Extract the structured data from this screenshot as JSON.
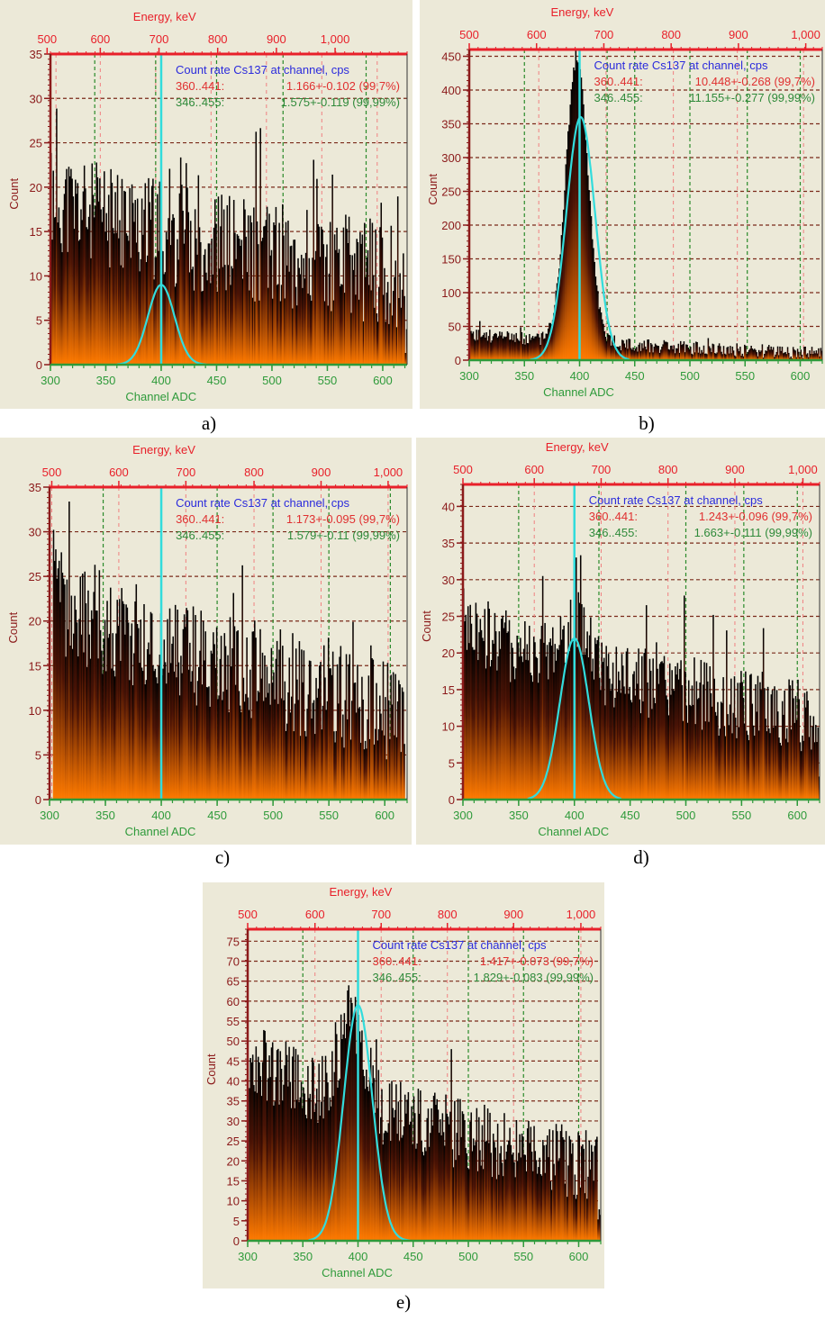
{
  "colors": {
    "panel_bg": "#ece9d8",
    "plot_bg": "#ece9d8",
    "energy_axis": "#e8202a",
    "count_axis": "#8b1a1a",
    "channel_axis": "#2e9a3a",
    "grid_count": "#7a2a1a",
    "grid_energy": "#f08080",
    "grid_channel": "#2a8a2a",
    "marker_line": "#32dcdc",
    "fit_curve": "#32dcdc",
    "bar_top": "#000000",
    "bar_bottom": "#ff7a00",
    "legend_title": "#2b2bdc",
    "legend_row1": "#e03030",
    "legend_row2": "#2f8a3a"
  },
  "chart_data": [
    {
      "id": "a",
      "caption": "a)",
      "type": "bar",
      "title": "",
      "xlabel": "Channel ADC",
      "ylabel": "Count",
      "x2label": "Energy, keV",
      "xlim": [
        300,
        622
      ],
      "ylim": [
        0,
        35
      ],
      "x_ticks": [
        300,
        350,
        400,
        450,
        500,
        550,
        600
      ],
      "y_ticks": [
        0,
        5,
        10,
        15,
        20,
        25,
        30,
        35
      ],
      "x2_ticks": [
        "500",
        "600",
        "700",
        "800",
        "900",
        "1,000"
      ],
      "x2_tick_channels": [
        297,
        345,
        398,
        451,
        504,
        557
      ],
      "energy_grid_channels": [
        305,
        345,
        395,
        445,
        495,
        545,
        595
      ],
      "channel_grid_channels": [
        340,
        395,
        450,
        510,
        585
      ],
      "marker_channel": 400,
      "legend": {
        "title": "Count rate Cs137 at channel, cps",
        "rows": [
          {
            "range": "360..441:",
            "value": "1.166+-0.102 (99,7%)"
          },
          {
            "range": "346..455:",
            "value": "1.575+-0.119 (99,99%)"
          }
        ]
      },
      "spectrum": {
        "start": 300,
        "end": 622,
        "base_start": 19,
        "base_end": 10,
        "noise": 6,
        "spike": 12,
        "peak_amp": 0,
        "peak_center": 400,
        "peak_sigma": 10,
        "seed": 11,
        "tail_drop": 3
      },
      "fit": {
        "amp": 9,
        "center": 400,
        "sigma": 12,
        "from": 360,
        "to": 441
      }
    },
    {
      "id": "b",
      "caption": "b)",
      "type": "bar",
      "title": "",
      "xlabel": "Channel ADC",
      "ylabel": "Count",
      "x2label": "Energy, keV",
      "xlim": [
        300,
        620
      ],
      "ylim": [
        0,
        460
      ],
      "x_ticks": [
        300,
        350,
        400,
        450,
        500,
        550,
        600
      ],
      "y_ticks": [
        0,
        50,
        100,
        150,
        200,
        250,
        300,
        350,
        400,
        450
      ],
      "x2_ticks": [
        "500",
        "600",
        "700",
        "800",
        "900",
        "1,000"
      ],
      "x2_tick_channels": [
        300,
        361,
        422,
        483,
        544,
        605
      ],
      "energy_grid_channels": [
        363,
        424,
        485,
        543,
        603
      ],
      "channel_grid_channels": [
        350,
        425,
        450,
        500,
        552,
        600
      ],
      "marker_channel": 400,
      "legend": {
        "title": "Count rate Cs137 at channel, cps",
        "rows": [
          {
            "range": "360..441:",
            "value": "10.448+-0.268 (99,7%)"
          },
          {
            "range": "346..455:",
            "value": "11.155+-0.277 (99,99%)"
          }
        ]
      },
      "spectrum": {
        "start": 300,
        "end": 620,
        "base_start": 40,
        "base_end": 10,
        "noise": 10,
        "spike": 15,
        "peak_amp": 420,
        "peak_center": 397,
        "peak_sigma": 10,
        "seed": 23,
        "tail_drop": 0
      },
      "fit": {
        "amp": 360,
        "center": 401,
        "sigma": 13,
        "from": 355,
        "to": 445
      }
    },
    {
      "id": "c",
      "caption": "c)",
      "type": "bar",
      "title": "",
      "xlabel": "Channel ADC",
      "ylabel": "Count",
      "x2label": "Energy, keV",
      "xlim": [
        300,
        620
      ],
      "ylim": [
        0,
        35
      ],
      "x_ticks": [
        300,
        350,
        400,
        450,
        500,
        550,
        600
      ],
      "y_ticks": [
        0,
        5,
        10,
        15,
        20,
        25,
        30,
        35
      ],
      "x2_ticks": [
        "500",
        "600",
        "700",
        "800",
        "900",
        "1,000"
      ],
      "x2_tick_channels": [
        302,
        362,
        422,
        483,
        543,
        603
      ],
      "energy_grid_channels": [
        302,
        362,
        422,
        483,
        543,
        603
      ],
      "channel_grid_channels": [
        348,
        450,
        500,
        550,
        605
      ],
      "marker_channel": 400,
      "legend": {
        "title": "Count rate Cs137 at channel, cps",
        "rows": [
          {
            "range": "360..441:",
            "value": "1.173+-0.095 (99,7%)"
          },
          {
            "range": "346..455:",
            "value": "1.579+-0.11 (99,99%)"
          }
        ]
      },
      "spectrum": {
        "start": 303,
        "end": 618,
        "base_start": 23,
        "base_end": 10,
        "noise": 6,
        "spike": 8,
        "peak_amp": 0,
        "peak_center": 400,
        "peak_sigma": 10,
        "seed": 37,
        "tail_drop": 0
      },
      "fit": null
    },
    {
      "id": "d",
      "caption": "d)",
      "type": "bar",
      "title": "",
      "xlabel": "Channel ADC",
      "ylabel": "Count",
      "x2label": "Energy, keV",
      "xlim": [
        300,
        620
      ],
      "ylim": [
        0,
        43
      ],
      "x_ticks": [
        300,
        350,
        400,
        450,
        500,
        550,
        600
      ],
      "y_ticks": [
        0,
        5,
        10,
        15,
        20,
        25,
        30,
        35,
        40
      ],
      "x2_ticks": [
        "500",
        "600",
        "700",
        "800",
        "900",
        "1,000"
      ],
      "x2_tick_channels": [
        300,
        364,
        424,
        484,
        544,
        605
      ],
      "energy_grid_channels": [
        364,
        424,
        484,
        544,
        605
      ],
      "channel_grid_channels": [
        350,
        422,
        500,
        552,
        600
      ],
      "marker_channel": 400,
      "legend": {
        "title": "Count rate Cs137 at channel, cps",
        "rows": [
          {
            "range": "360..441:",
            "value": "1.243+-0.096 (99,7%)"
          },
          {
            "range": "346..455:",
            "value": "1.663+-0.111 (99,99%)"
          }
        ]
      },
      "spectrum": {
        "start": 300,
        "end": 620,
        "base_start": 24,
        "base_end": 11,
        "noise": 5,
        "spike": 9,
        "peak_amp": 6,
        "peak_center": 400,
        "peak_sigma": 12,
        "seed": 41,
        "tail_drop": 2
      },
      "fit": {
        "amp": 22,
        "center": 400,
        "sigma": 13,
        "from": 358,
        "to": 442
      }
    },
    {
      "id": "e",
      "caption": "e)",
      "type": "bar",
      "title": "",
      "xlabel": "Channel ADC",
      "ylabel": "Count",
      "x2label": "Energy, keV",
      "xlim": [
        300,
        620
      ],
      "ylim": [
        0,
        78
      ],
      "x_ticks": [
        300,
        350,
        400,
        450,
        500,
        550,
        600
      ],
      "y_ticks": [
        0,
        5,
        10,
        15,
        20,
        25,
        30,
        35,
        40,
        45,
        50,
        55,
        60,
        65,
        70,
        75
      ],
      "x2_ticks": [
        "500",
        "600",
        "700",
        "800",
        "900",
        "1,000"
      ],
      "x2_tick_channels": [
        300,
        361,
        421,
        481,
        541,
        602
      ],
      "energy_grid_channels": [
        300,
        361,
        421,
        481,
        541,
        602
      ],
      "channel_grid_channels": [
        350,
        450,
        500,
        550,
        600
      ],
      "marker_channel": 400,
      "legend": {
        "title": "Count rate Cs137 at channel, cps",
        "rows": [
          {
            "range": "360..441:",
            "value": "1.417+-0.073 (99,7%)"
          },
          {
            "range": "346..455:",
            "value": "1.829+-0.083 (99,99%)"
          }
        ]
      },
      "spectrum": {
        "start": 301,
        "end": 620,
        "base_start": 47,
        "base_end": 18,
        "noise": 9,
        "spike": 14,
        "peak_amp": 22,
        "peak_center": 395,
        "peak_sigma": 10,
        "seed": 53,
        "tail_drop": 4
      },
      "fit": {
        "amp": 59,
        "center": 400,
        "sigma": 13,
        "from": 355,
        "to": 447
      }
    }
  ]
}
